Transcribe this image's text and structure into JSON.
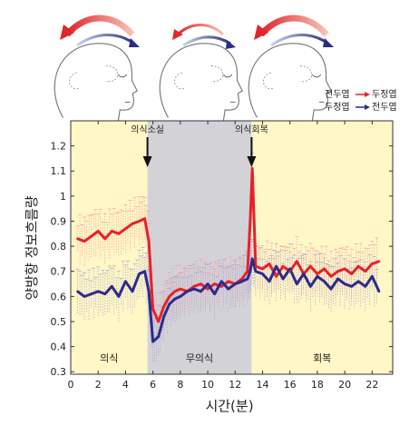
{
  "chart_data": {
    "type": "line",
    "xlabel": "시간(분)",
    "ylabel": "양방향 정보흐름량",
    "xlim": [
      0,
      23.5
    ],
    "ylim": [
      0.29,
      1.3
    ],
    "xticks": [
      0,
      2,
      4,
      6,
      8,
      10,
      12,
      14,
      16,
      18,
      20,
      22
    ],
    "yticks": [
      0.3,
      0.4,
      0.5,
      0.6,
      0.7,
      0.8,
      0.9,
      1.0,
      1.1,
      1.2
    ],
    "ytick_labels": [
      "0.3",
      "0.4",
      "0.5",
      "0.6",
      "0.7",
      "0.8",
      "0.9",
      "1",
      "1.1",
      "1.2"
    ],
    "regions": [
      {
        "label": "의식",
        "x_start": 0,
        "x_end": 5.6,
        "color": "#fff7c6"
      },
      {
        "label": "무의식",
        "x_start": 5.6,
        "x_end": 13.2,
        "color": "#d3d3d7"
      },
      {
        "label": "회복",
        "x_start": 13.2,
        "x_end": 23.5,
        "color": "#fff7c6"
      }
    ],
    "annotations": [
      {
        "label": "의식소실",
        "x": 5.6
      },
      {
        "label": "의식회복",
        "x": 13.2
      }
    ],
    "series": [
      {
        "legend_from": "전두엽",
        "legend_to": "두정엽",
        "color": "#e8202a",
        "x": [
          0.5,
          1.0,
          1.5,
          2.0,
          2.5,
          3.0,
          3.5,
          4.0,
          4.5,
          5.0,
          5.4,
          5.7,
          6.0,
          6.4,
          6.8,
          7.2,
          7.6,
          8.0,
          8.5,
          9.0,
          9.5,
          10.0,
          10.5,
          11.0,
          11.5,
          12.0,
          12.5,
          12.9,
          13.1,
          13.25,
          13.5,
          14.0,
          14.5,
          15.0,
          15.5,
          16.0,
          16.5,
          17.0,
          17.5,
          18.0,
          18.5,
          19.0,
          19.5,
          20.0,
          20.5,
          21.0,
          21.5,
          22.0,
          22.5
        ],
        "values": [
          0.83,
          0.82,
          0.84,
          0.86,
          0.83,
          0.86,
          0.85,
          0.87,
          0.89,
          0.9,
          0.91,
          0.82,
          0.55,
          0.5,
          0.56,
          0.6,
          0.62,
          0.63,
          0.62,
          0.64,
          0.65,
          0.63,
          0.65,
          0.64,
          0.66,
          0.65,
          0.67,
          0.7,
          0.9,
          1.11,
          0.72,
          0.71,
          0.73,
          0.68,
          0.72,
          0.7,
          0.74,
          0.69,
          0.72,
          0.69,
          0.71,
          0.68,
          0.7,
          0.71,
          0.69,
          0.72,
          0.7,
          0.73,
          0.74
        ]
      },
      {
        "legend_from": "두정엽",
        "legend_to": "전두엽",
        "color": "#2d2a8c",
        "x": [
          0.5,
          1.0,
          1.5,
          2.0,
          2.5,
          3.0,
          3.5,
          4.0,
          4.5,
          5.0,
          5.4,
          5.7,
          6.0,
          6.4,
          6.8,
          7.2,
          7.6,
          8.0,
          8.5,
          9.0,
          9.5,
          10.0,
          10.5,
          11.0,
          11.5,
          12.0,
          12.5,
          12.9,
          13.1,
          13.25,
          13.5,
          14.0,
          14.5,
          15.0,
          15.5,
          16.0,
          16.5,
          17.0,
          17.5,
          18.0,
          18.5,
          19.0,
          19.5,
          20.0,
          20.5,
          21.0,
          21.5,
          22.0,
          22.5
        ],
        "values": [
          0.62,
          0.6,
          0.61,
          0.62,
          0.61,
          0.64,
          0.6,
          0.66,
          0.62,
          0.69,
          0.7,
          0.62,
          0.42,
          0.44,
          0.52,
          0.57,
          0.59,
          0.6,
          0.62,
          0.63,
          0.62,
          0.65,
          0.61,
          0.66,
          0.63,
          0.65,
          0.66,
          0.67,
          0.7,
          0.75,
          0.7,
          0.69,
          0.66,
          0.72,
          0.67,
          0.71,
          0.65,
          0.69,
          0.64,
          0.68,
          0.66,
          0.63,
          0.67,
          0.65,
          0.64,
          0.66,
          0.64,
          0.68,
          0.62
        ]
      }
    ]
  }
}
